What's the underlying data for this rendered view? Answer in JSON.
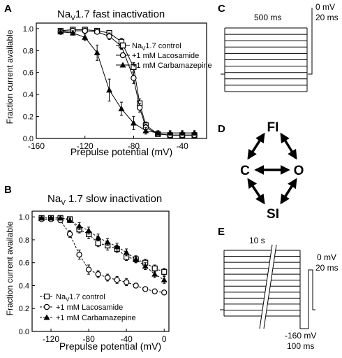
{
  "panels": {
    "A": {
      "letter": "A",
      "title": "Na",
      "title_sub": "V",
      "title_rest": "1.7 fast inactivation"
    },
    "B": {
      "letter": "B",
      "title": "Na",
      "title_sub": "V",
      "title_rest": " 1.7 slow inactivation"
    },
    "C": {
      "letter": "C",
      "duration_label": "500 ms",
      "voltage_label": "0 mV",
      "time_label": "20 ms"
    },
    "D": {
      "letter": "D",
      "states": {
        "fi": "FI",
        "c": "C",
        "o": "O",
        "si": "SI"
      }
    },
    "E": {
      "letter": "E",
      "duration_label": "10 s",
      "voltage_label": "0 mV",
      "time_label": "20 ms",
      "hold_voltage_label": "-160 mV",
      "hold_time_label": "100 ms"
    }
  },
  "chart_data": [
    {
      "id": "A",
      "type": "line",
      "title": "Nav1.7 fast inactivation",
      "xlabel": "Prepulse potential (mV)",
      "ylabel": "Fraction current available",
      "xlim": [
        -160,
        -20
      ],
      "ylim": [
        0,
        1.05
      ],
      "xticks": [
        -160,
        -120,
        -80,
        -40
      ],
      "yticks": [
        0.0,
        0.2,
        0.4,
        0.6,
        0.8,
        1.0
      ],
      "ytick_labels": [
        "0.0",
        "0.2",
        "0.4",
        "0.6",
        "0.8",
        "1.0"
      ],
      "legend_position": "right",
      "series": [
        {
          "name": "Nav1.7 control",
          "legend_main": "Na",
          "legend_sub": "V",
          "legend_rest": "1.7 control",
          "marker": "open-square",
          "x": [
            -140,
            -130,
            -120,
            -110,
            -100,
            -90,
            -80,
            -75,
            -70,
            -60,
            -50,
            -40,
            -30
          ],
          "y": [
            0.98,
            0.99,
            0.99,
            0.98,
            0.96,
            0.88,
            0.65,
            0.32,
            0.12,
            0.04,
            0.03,
            0.03,
            0.03
          ],
          "err": [
            0.02,
            0.02,
            0.02,
            0.02,
            0.02,
            0.03,
            0.04,
            0.04,
            0.03,
            0.02,
            0.02,
            0.02,
            0.02
          ]
        },
        {
          "name": "+1 mM Lacosamide",
          "marker": "open-circle",
          "x": [
            -140,
            -130,
            -120,
            -110,
            -100,
            -90,
            -80,
            -75,
            -70,
            -60,
            -50,
            -40,
            -30
          ],
          "y": [
            0.97,
            0.98,
            0.98,
            0.97,
            0.93,
            0.84,
            0.55,
            0.28,
            0.1,
            0.04,
            0.03,
            0.03,
            0.03
          ],
          "err": [
            0.02,
            0.02,
            0.02,
            0.02,
            0.03,
            0.03,
            0.05,
            0.04,
            0.03,
            0.02,
            0.02,
            0.02,
            0.02
          ]
        },
        {
          "name": "+1 mM Carbamazepine",
          "marker": "filled-triangle",
          "x": [
            -140,
            -130,
            -120,
            -110,
            -100,
            -90,
            -80,
            -70,
            -60,
            -50,
            -40,
            -30
          ],
          "y": [
            0.97,
            0.96,
            0.92,
            0.78,
            0.44,
            0.27,
            0.14,
            0.07,
            0.05,
            0.05,
            0.05,
            0.05
          ],
          "err": [
            0.02,
            0.02,
            0.03,
            0.07,
            0.1,
            0.06,
            0.06,
            0.03,
            0.02,
            0.02,
            0.02,
            0.02
          ]
        }
      ]
    },
    {
      "id": "B",
      "type": "line",
      "title": "Nav 1.7 slow inactivation",
      "xlabel": "Prepulse potential (mV)",
      "ylabel": "Fraction current available",
      "xlim": [
        -140,
        5
      ],
      "ylim": [
        0,
        1.05
      ],
      "xticks": [
        -120,
        -80,
        -40,
        0
      ],
      "yticks": [
        0.0,
        0.2,
        0.4,
        0.6,
        0.8,
        1.0
      ],
      "ytick_labels": [
        "0.0",
        "0.2",
        "0.4",
        "0.6",
        "0.8",
        "1.0"
      ],
      "legend_position": "bottom-left",
      "series": [
        {
          "name": "Nav1.7 control",
          "legend_main": "Na",
          "legend_sub": "V",
          "legend_rest": "1.7 control",
          "marker": "open-square",
          "x": [
            -130,
            -120,
            -110,
            -100,
            -90,
            -80,
            -70,
            -60,
            -50,
            -40,
            -30,
            -20,
            -10,
            0
          ],
          "y": [
            0.99,
            0.99,
            0.99,
            0.98,
            0.89,
            0.85,
            0.77,
            0.75,
            0.72,
            0.65,
            0.63,
            0.6,
            0.55,
            0.52
          ],
          "err": [
            0.01,
            0.01,
            0.02,
            0.02,
            0.03,
            0.04,
            0.03,
            0.04,
            0.03,
            0.03,
            0.03,
            0.03,
            0.03,
            0.03
          ]
        },
        {
          "name": "+1 mM Lacosamide",
          "marker": "open-circle",
          "x": [
            -130,
            -120,
            -110,
            -100,
            -90,
            -80,
            -70,
            -60,
            -50,
            -40,
            -30,
            -20,
            -10,
            0
          ],
          "y": [
            0.98,
            0.98,
            0.97,
            0.85,
            0.67,
            0.54,
            0.5,
            0.47,
            0.45,
            0.43,
            0.4,
            0.37,
            0.35,
            0.34
          ],
          "err": [
            0.01,
            0.01,
            0.02,
            0.03,
            0.04,
            0.04,
            0.03,
            0.03,
            0.03,
            0.03,
            0.02,
            0.02,
            0.02,
            0.02
          ]
        },
        {
          "name": "+1 mM Carbamazepine",
          "marker": "filled-triangle",
          "x": [
            -130,
            -120,
            -110,
            -100,
            -90,
            -80,
            -70,
            -60,
            -50,
            -40,
            -30,
            -20,
            -10,
            0
          ],
          "y": [
            0.99,
            0.99,
            0.99,
            0.97,
            0.92,
            0.88,
            0.82,
            0.78,
            0.74,
            0.69,
            0.63,
            0.57,
            0.5,
            0.45
          ],
          "err": [
            0.01,
            0.01,
            0.01,
            0.02,
            0.03,
            0.03,
            0.03,
            0.03,
            0.03,
            0.03,
            0.03,
            0.03,
            0.03,
            0.03
          ]
        }
      ]
    }
  ]
}
